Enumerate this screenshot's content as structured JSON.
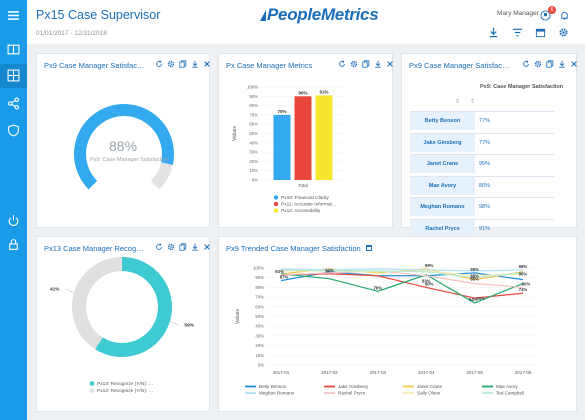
{
  "header": {
    "title": "Px15 Case Supervisor",
    "date_range": "01/01/2017 - 12/31/2018",
    "logo": "PeopleMetrics",
    "user": "Mary Manager",
    "notification_count": "6"
  },
  "sidebar": {
    "icons": [
      "menu-icon",
      "book-icon",
      "dashboard-icon",
      "share-icon",
      "shield-icon",
      "power-icon",
      "lock-icon"
    ]
  },
  "cards": {
    "gauge": {
      "title": "Px9 Case Manager Satisfac…",
      "value_label": "88%",
      "sub_label": "Px9: Case Manager Satisfaction",
      "value": 88,
      "color": "#33aaf0",
      "track": "#e3e3e3"
    },
    "metrics": {
      "title": "Px Case Manager Metrics"
    },
    "table": {
      "title": "Px9 Case Manager Satisfac…",
      "column_header": "Px9: Case Manager Satisfaction",
      "rows": [
        {
          "name": "Betty Benson",
          "value": "77%"
        },
        {
          "name": "Jake Ginsberg",
          "value": "77%"
        },
        {
          "name": "Janet Crane",
          "value": "95%"
        },
        {
          "name": "Mae Avory",
          "value": "80%"
        },
        {
          "name": "Meghan Romano",
          "value": "98%"
        },
        {
          "name": "Rachel Pryce",
          "value": "91%"
        }
      ]
    },
    "donut": {
      "title": "Px13 Case Manager Recog…"
    },
    "trend": {
      "title": "Px9 Trended Case Manager Satisfaction"
    }
  },
  "chart_data": [
    {
      "type": "bar",
      "ylabel": "Values",
      "categories": [
        "Total"
      ],
      "ylim": [
        0,
        100
      ],
      "yticks": [
        "0%",
        "10%",
        "20%",
        "30%",
        "40%",
        "50%",
        "60%",
        "70%",
        "80%",
        "90%",
        "100%"
      ],
      "series": [
        {
          "name": "Px10: Financial Clarity",
          "values": [
            70
          ],
          "label": "70%",
          "color": "#33aaf0"
        },
        {
          "name": "Px11: Accurate Informat…",
          "values": [
            90
          ],
          "label": "90%",
          "color": "#e8453c"
        },
        {
          "name": "Px12: Accessibility",
          "values": [
            91
          ],
          "label": "91%",
          "color": "#f5e62e"
        }
      ]
    },
    {
      "type": "pie",
      "slices": [
        {
          "name": "Px13: Recognize (Y/N): …",
          "value": 59,
          "label": "59%",
          "color": "#3ecad3"
        },
        {
          "name": "Px13: Recognize (Y/N): …",
          "value": 41,
          "label": "41%",
          "color": "#e0e0e0"
        }
      ]
    },
    {
      "type": "line",
      "ylabel": "Values",
      "x": [
        "2017-01",
        "2017-02",
        "2017-03",
        "2017-04",
        "2017-05",
        "2017-06"
      ],
      "ylim": [
        0,
        100
      ],
      "yticks": [
        "0%",
        "10%",
        "20%",
        "30%",
        "40%",
        "50%",
        "60%",
        "70%",
        "80%",
        "90%",
        "100%"
      ],
      "series": [
        {
          "name": "Betty Benson",
          "color": "#1f8fd6",
          "values": [
            87,
            96,
            92,
            92,
            95,
            88
          ]
        },
        {
          "name": "Jake Ginsberg",
          "color": "#e8453c",
          "values": [
            93,
            94,
            92,
            80,
            69,
            74
          ]
        },
        {
          "name": "Janet Crane",
          "color": "#f0c94a",
          "values": [
            94,
            99,
            95,
            99,
            88,
            96
          ]
        },
        {
          "name": "Mae Avory",
          "color": "#1fa86a",
          "values": [
            94,
            89,
            76,
            93,
            64,
            84
          ]
        },
        {
          "name": "Meghan Romano",
          "color": "#aee3f7",
          "values": [
            99,
            98,
            99,
            98,
            97,
            98
          ]
        },
        {
          "name": "Rachel Pryce",
          "color": "#f4c3c3",
          "values": [
            93,
            95,
            97,
            92,
            84,
            80
          ]
        },
        {
          "name": "Sally Olson",
          "color": "#f4edb3",
          "values": [
            97,
            97,
            96,
            97,
            92,
            94
          ]
        },
        {
          "name": "Ted Campbell",
          "color": "#b9ead7",
          "values": [
            98,
            97,
            97,
            96,
            90,
            95
          ]
        }
      ],
      "annotations": [
        "93%",
        "94%",
        "87%",
        "76%",
        "99%",
        "80%",
        "83%",
        "95%",
        "88%",
        "85%",
        "64%",
        "65%",
        "98%",
        "90%",
        "80%",
        "74%"
      ]
    }
  ]
}
